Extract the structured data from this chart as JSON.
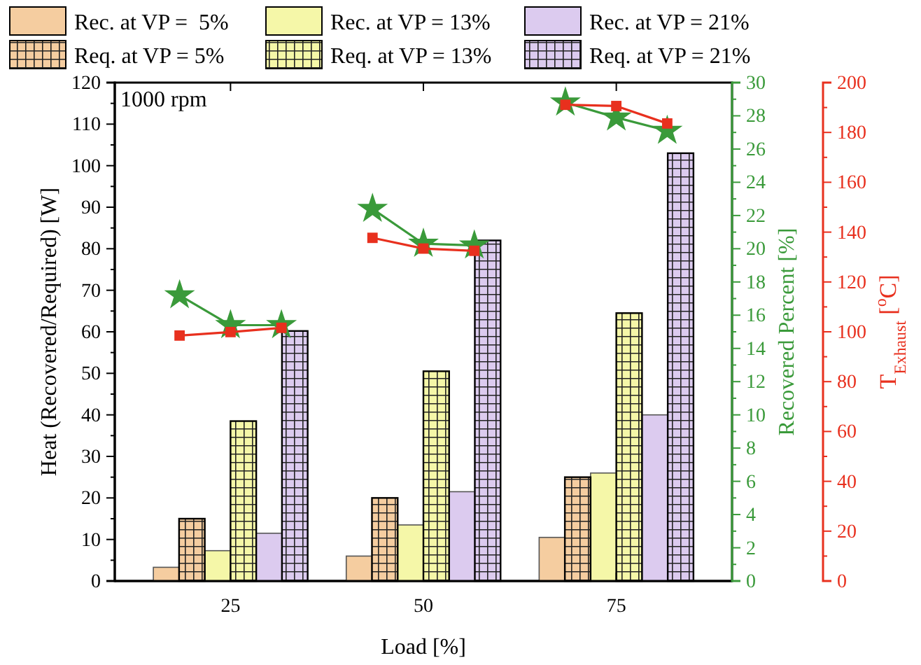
{
  "chart_data": {
    "type": "bar",
    "x": [
      25,
      50,
      75
    ],
    "xlim": [
      10,
      90
    ],
    "xticks": [
      25,
      50,
      75
    ],
    "xlabel": "Load [%]",
    "ylabel": "Heat (Recovered/Required) [W]",
    "y2label": "Recovered Percent [%]",
    "y3label": "T$_{Exhaust}$ [$^{o}$C]",
    "ylim": [
      0,
      120
    ],
    "yticks": [
      0,
      10,
      20,
      30,
      40,
      50,
      60,
      70,
      80,
      90,
      100,
      110,
      120
    ],
    "y2lim": [
      0,
      30
    ],
    "y2ticks": [
      0,
      2,
      4,
      6,
      8,
      10,
      12,
      14,
      16,
      18,
      20,
      22,
      24,
      26,
      28,
      30
    ],
    "y3lim": [
      0,
      200
    ],
    "y3ticks": [
      0,
      20,
      40,
      60,
      80,
      100,
      120,
      140,
      160,
      180,
      200
    ],
    "legend": "top",
    "annotations": [
      "1000 rpm"
    ],
    "series": [
      {
        "name": "Rec. at VP =  5%",
        "color": "#f5cda0",
        "values": [
          3.3,
          6,
          10.5
        ]
      },
      {
        "name": "Req. at VP = 5%",
        "color": "#f5cda0",
        "values": [
          15,
          20,
          25
        ]
      },
      {
        "name": "Rec. at VP = 13%",
        "color": "#f5f7a8",
        "values": [
          7.3,
          13.5,
          26
        ]
      },
      {
        "name": "Req. at VP = 13%",
        "color": "#f5f7a8",
        "values": [
          38.5,
          50.5,
          64.5
        ]
      },
      {
        "name": "Rec. at VP = 21%",
        "color": "#dccbef",
        "values": [
          11.5,
          21.5,
          40
        ]
      },
      {
        "name": "Req. at VP = 21%",
        "color": "#dccbef",
        "values": [
          60.2,
          82,
          103
        ]
      },
      {
        "type": "line",
        "axis": "y2",
        "marker": "star",
        "color": "#3a9a3a",
        "x": [
          18.4,
          25,
          31.6
        ],
        "values": [
          17.2,
          15.4,
          15.4
        ]
      },
      {
        "type": "line",
        "axis": "y2",
        "marker": "star",
        "color": "#3a9a3a",
        "x": [
          43.4,
          50,
          56.6
        ],
        "values": [
          22.4,
          20.3,
          20.2
        ]
      },
      {
        "type": "line",
        "axis": "y2",
        "marker": "star",
        "color": "#3a9a3a",
        "x": [
          68.4,
          75,
          81.6
        ],
        "values": [
          28.8,
          27.9,
          27.1
        ]
      },
      {
        "type": "line",
        "axis": "y3",
        "marker": "square",
        "color": "#e8301e",
        "x": [
          18.4,
          25,
          31.6
        ],
        "values": [
          98.5,
          99.9,
          101.6
        ]
      },
      {
        "type": "line",
        "axis": "y3",
        "marker": "square",
        "color": "#e8301e",
        "x": [
          43.4,
          50,
          56.6
        ],
        "values": [
          137.7,
          133.4,
          132.5
        ]
      },
      {
        "type": "line",
        "axis": "y3",
        "marker": "square",
        "color": "#e8301e",
        "x": [
          68.4,
          75,
          81.6
        ],
        "values": [
          191.1,
          190.6,
          183.6
        ]
      }
    ]
  }
}
